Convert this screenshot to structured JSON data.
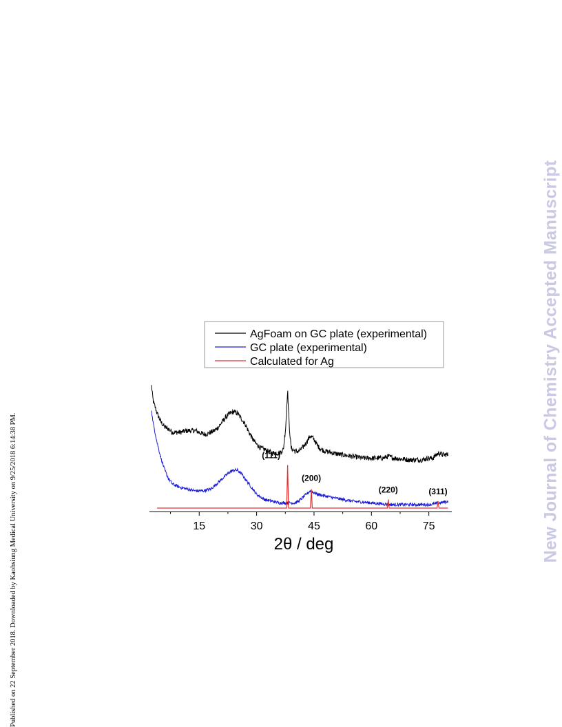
{
  "side_note": "Published on 22 September 2018. Downloaded by Kaohsiung Medical University on 9/25/2018 6:14:38 PM.",
  "watermark": "New Journal of Chemistry Accepted Manuscript",
  "chart_data": {
    "type": "line",
    "title": "",
    "xlabel": "2θ / deg",
    "ylabel": "",
    "xlim": [
      2,
      81
    ],
    "ylim": [
      0,
      100
    ],
    "x_ticks": [
      15,
      30,
      45,
      60,
      75
    ],
    "grid": false,
    "legend_position": "top-right",
    "series": [
      {
        "name": "AgFoam on GC plate (experimental)",
        "color": "#000000",
        "x": [
          2.5,
          3,
          4,
          5,
          6,
          7,
          8,
          10,
          12,
          14,
          15,
          16,
          17,
          18,
          19,
          20,
          21,
          22,
          23,
          24,
          25,
          26,
          27,
          28,
          29,
          30,
          31,
          32,
          33,
          34,
          35,
          36,
          37,
          37.6,
          38.1,
          38.5,
          39,
          40,
          41,
          42,
          43,
          44,
          45,
          46,
          47,
          48,
          50,
          52,
          55,
          58,
          61,
          63,
          64.4,
          66,
          70,
          73,
          75,
          76,
          77,
          77.6,
          78.5,
          79.5,
          80
        ],
        "y": [
          71,
          62,
          55,
          50,
          47,
          46,
          44,
          44,
          45,
          45,
          44,
          43,
          43,
          44,
          45,
          47,
          50,
          53,
          55,
          56,
          55,
          52,
          49,
          44,
          40,
          37,
          35,
          34,
          33,
          32,
          32,
          32,
          34,
          47,
          69,
          49,
          35,
          33,
          33,
          35,
          38,
          42,
          40,
          36,
          34,
          33,
          32,
          31,
          30,
          29,
          29,
          29,
          30,
          29,
          28,
          28,
          29,
          29,
          31,
          32,
          31,
          31,
          31
        ]
      },
      {
        "name": "GC plate (experimental)",
        "color": "#1c1cd6",
        "x": [
          2.5,
          3,
          4,
          5,
          6,
          7,
          8,
          10,
          12,
          14,
          16,
          18,
          19,
          20,
          21,
          22,
          23,
          24,
          25,
          26,
          27,
          28,
          29,
          30,
          32,
          34,
          36,
          38,
          40,
          41,
          42,
          43,
          44,
          45,
          46,
          48,
          50,
          55,
          60,
          65,
          70,
          75,
          78,
          80
        ],
        "y": [
          57,
          49,
          38,
          29,
          22,
          17,
          14,
          12,
          11,
          10,
          10,
          11,
          13,
          15,
          17,
          19,
          21,
          22,
          22,
          20,
          17,
          14,
          11,
          8,
          5,
          4,
          3,
          3,
          3,
          4,
          6,
          8,
          10,
          9,
          8,
          7,
          6,
          4,
          3,
          2,
          2,
          2,
          3,
          4
        ]
      },
      {
        "name": "Calculated for Ag",
        "color": "#e03030",
        "peaks": [
          {
            "x": 38.1,
            "height": 25,
            "label": "(111)"
          },
          {
            "x": 44.3,
            "height": 11,
            "label": "(200)"
          },
          {
            "x": 64.4,
            "height": 5,
            "label": "(220)"
          },
          {
            "x": 77.4,
            "height": 4,
            "label": "(311)"
          }
        ],
        "x_start": 4,
        "x_end": 80
      }
    ]
  }
}
